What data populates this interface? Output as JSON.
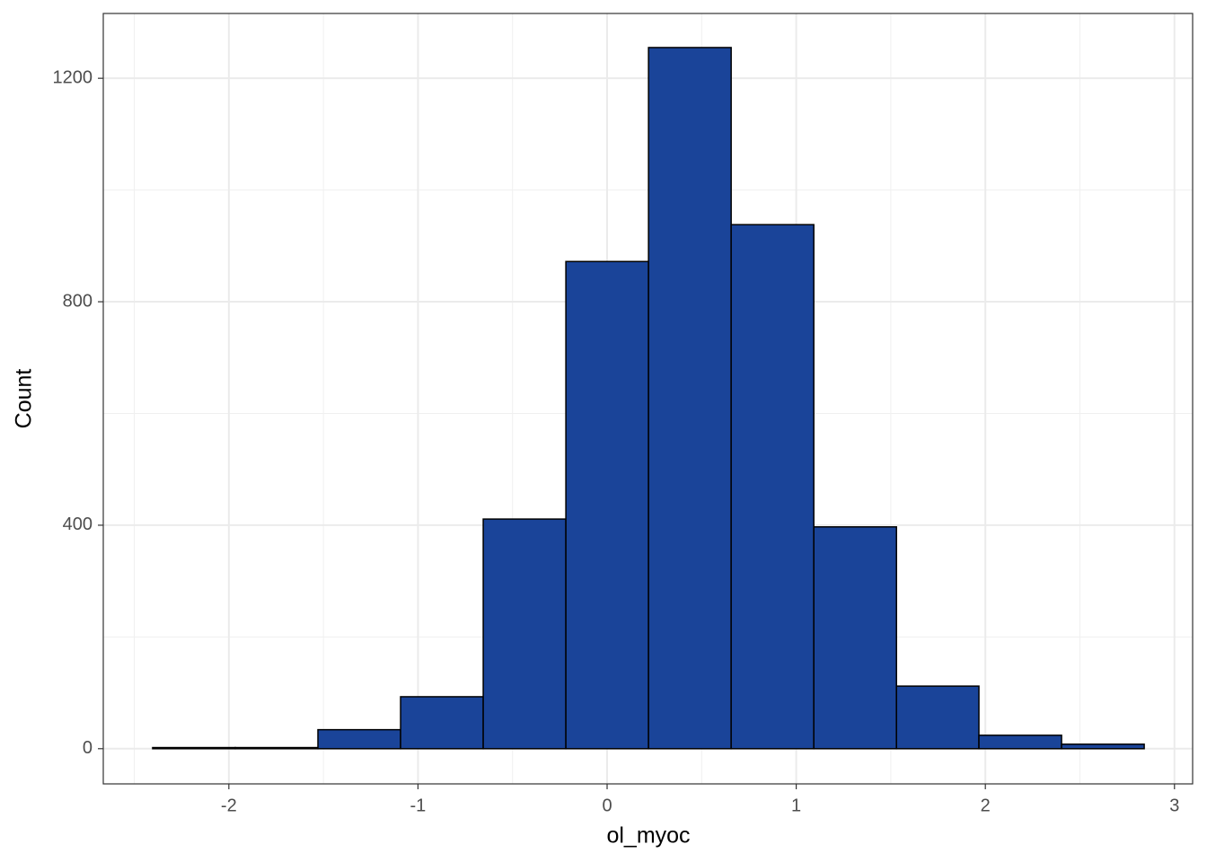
{
  "chart_data": {
    "type": "histogram",
    "x_label": "ol_myoc",
    "y_label": "Count",
    "bins": [
      -2.403,
      -1.966,
      -1.529,
      -1.092,
      -0.655,
      -0.218,
      0.219,
      0.656,
      1.093,
      1.53,
      1.966,
      2.403,
      2.84
    ],
    "values": [
      2,
      2,
      34,
      93,
      411,
      872,
      1255,
      938,
      397,
      112,
      24,
      8
    ],
    "color": "#1a4499",
    "edge_color": "#000000",
    "xlim": [
      -2.664,
      3.096
    ],
    "ylim": [
      -63,
      1316
    ],
    "xticks": [
      -2,
      -1,
      0,
      1,
      2,
      3
    ],
    "yticks": [
      0,
      400,
      800,
      1200
    ],
    "grid": true,
    "minor_grid": true
  }
}
